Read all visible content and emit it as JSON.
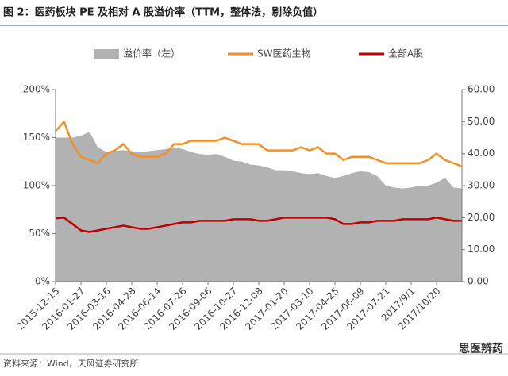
{
  "chart_data": {
    "type": "area_line_dual",
    "title": "图 2：医药板块 PE 及相对 A 股溢价率（TTM，整体法，剔除负值）",
    "source": "资料来源：Wind，天风证券研究所",
    "watermark": "思医辨药",
    "categories": [
      "2015-12-15",
      null,
      null,
      "2016-01-27",
      null,
      null,
      "2016-03-16",
      null,
      null,
      "2016-04-28",
      null,
      null,
      "2016-06-14",
      null,
      null,
      "2016-07-26",
      null,
      null,
      "2016-09-06",
      null,
      null,
      "2016-10-27",
      null,
      null,
      "2016-12-08",
      null,
      null,
      "2017-01-20",
      null,
      null,
      "2017-03-10",
      null,
      null,
      "2017-04-25",
      null,
      null,
      "2017-06-09",
      null,
      null,
      "2017-07-21",
      null,
      null,
      "2017/9/1",
      null,
      null,
      "2017/10/20",
      null,
      null,
      null
    ],
    "series": [
      {
        "name": "溢价率（左）",
        "kind": "area",
        "axis": "y",
        "color": "#b2b2b2",
        "values": [
          150,
          150,
          150,
          152,
          156,
          140,
          135,
          136,
          137,
          136,
          135,
          136,
          137,
          138,
          140,
          138,
          135,
          133,
          132,
          133,
          130,
          126,
          125,
          122,
          121,
          119,
          116,
          116,
          115,
          113,
          112,
          113,
          110,
          108,
          110,
          113,
          115,
          114,
          110,
          100,
          98,
          97,
          98,
          100,
          100,
          103,
          108,
          98,
          97
        ]
      },
      {
        "name": "SW医药生物",
        "kind": "line",
        "axis": "y2",
        "color": "#f0902a",
        "values": [
          47,
          50,
          43,
          39,
          38,
          37,
          40,
          41,
          43,
          40,
          39,
          39,
          39,
          40,
          43,
          43,
          44,
          44,
          44,
          44,
          45,
          44,
          43,
          43,
          43,
          41,
          41,
          41,
          41,
          42,
          41,
          42,
          40,
          40,
          38,
          39,
          39,
          39,
          38,
          37,
          37,
          37,
          37,
          37,
          38,
          40,
          38,
          37,
          36
        ]
      },
      {
        "name": "全部A股",
        "kind": "line",
        "axis": "y2",
        "color": "#c00000",
        "values": [
          19.8,
          20,
          18,
          16,
          15.5,
          16,
          16.5,
          17,
          17.5,
          17,
          16.5,
          16.5,
          17,
          17.5,
          18,
          18.5,
          18.5,
          19,
          19,
          19,
          19,
          19.5,
          19.5,
          19.5,
          19,
          19,
          19.5,
          20,
          20,
          20,
          20,
          20,
          20,
          19.5,
          18,
          18,
          18.5,
          18.5,
          19,
          19,
          19,
          19.5,
          19.5,
          19.5,
          19.5,
          20,
          19.5,
          19,
          19
        ]
      }
    ],
    "ylim": [
      0,
      200
    ],
    "yticks": [
      {
        "value": 0,
        "label": "0%"
      },
      {
        "value": 50,
        "label": "50%"
      },
      {
        "value": 100,
        "label": "100%"
      },
      {
        "value": 150,
        "label": "150%"
      },
      {
        "value": 200,
        "label": "200%"
      }
    ],
    "y2lim": [
      0,
      60
    ],
    "y2ticks": [
      {
        "value": 0,
        "label": "0.00"
      },
      {
        "value": 10,
        "label": "10.00"
      },
      {
        "value": 20,
        "label": "20.00"
      },
      {
        "value": 30,
        "label": "30.00"
      },
      {
        "value": 40,
        "label": "40.00"
      },
      {
        "value": 50,
        "label": "50.00"
      },
      {
        "value": 60,
        "label": "60.00"
      }
    ],
    "grid": false,
    "legend": "top"
  }
}
